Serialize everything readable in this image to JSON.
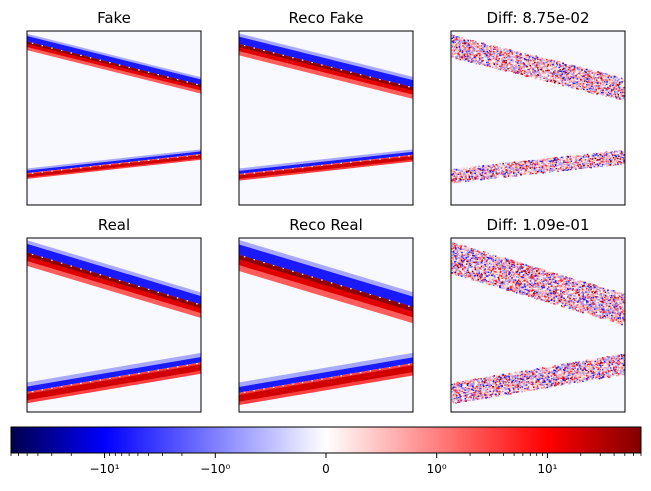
{
  "chart_data": {
    "type": "heatmap",
    "colormap": "seismic",
    "colormap_colors": [
      "#00004c",
      "#0000ff",
      "#ffffff",
      "#ff0000",
      "#800000"
    ],
    "panels": [
      {
        "title": "Fake",
        "kind": "image",
        "bands": [
          {
            "name": "upper",
            "y_left": 0.02,
            "y_right": 0.27,
            "width": 0.09
          },
          {
            "name": "lower",
            "y_left": 0.79,
            "y_right": 0.68,
            "width": 0.06
          }
        ]
      },
      {
        "title": "Reco Fake",
        "kind": "image",
        "bands": [
          {
            "name": "upper",
            "y_left": 0.02,
            "y_right": 0.27,
            "width": 0.12
          },
          {
            "name": "lower",
            "y_left": 0.79,
            "y_right": 0.68,
            "width": 0.07
          }
        ]
      },
      {
        "title": "Diff: 8.75e-02",
        "kind": "diff",
        "bands": [
          {
            "name": "upper",
            "y_left": 0.02,
            "y_right": 0.27,
            "width": 0.13
          },
          {
            "name": "lower",
            "y_left": 0.79,
            "y_right": 0.68,
            "width": 0.08
          }
        ]
      },
      {
        "title": "Real",
        "kind": "image",
        "bands": [
          {
            "name": "upper",
            "y_left": 0.02,
            "y_right": 0.32,
            "width": 0.14
          },
          {
            "name": "lower",
            "y_left": 0.83,
            "y_right": 0.66,
            "width": 0.12
          }
        ]
      },
      {
        "title": "Reco Real",
        "kind": "image",
        "bands": [
          {
            "name": "upper",
            "y_left": 0.02,
            "y_right": 0.32,
            "width": 0.17
          },
          {
            "name": "lower",
            "y_left": 0.83,
            "y_right": 0.66,
            "width": 0.13
          }
        ]
      },
      {
        "title": "Diff: 1.09e-01",
        "kind": "diff",
        "bands": [
          {
            "name": "upper",
            "y_left": 0.02,
            "y_right": 0.32,
            "width": 0.18
          },
          {
            "name": "lower",
            "y_left": 0.83,
            "y_right": 0.66,
            "width": 0.12
          }
        ]
      }
    ],
    "colorbar": {
      "orientation": "horizontal",
      "scale": "symlog",
      "linthresh": 1,
      "range": [
        -70,
        70
      ],
      "major_ticks": [
        {
          "value": -10,
          "label": "−10¹"
        },
        {
          "value": -1,
          "label": "−10⁰"
        },
        {
          "value": 0,
          "label": "0"
        },
        {
          "value": 1,
          "label": "10⁰"
        },
        {
          "value": 10,
          "label": "10¹"
        }
      ],
      "minor_ticks": [
        -70,
        -60,
        -50,
        -40,
        -30,
        -20,
        -9,
        -8,
        -7,
        -6,
        -5,
        -4,
        -3,
        -2,
        2,
        3,
        4,
        5,
        6,
        7,
        8,
        9,
        20,
        30,
        40,
        50,
        60,
        70
      ]
    }
  }
}
